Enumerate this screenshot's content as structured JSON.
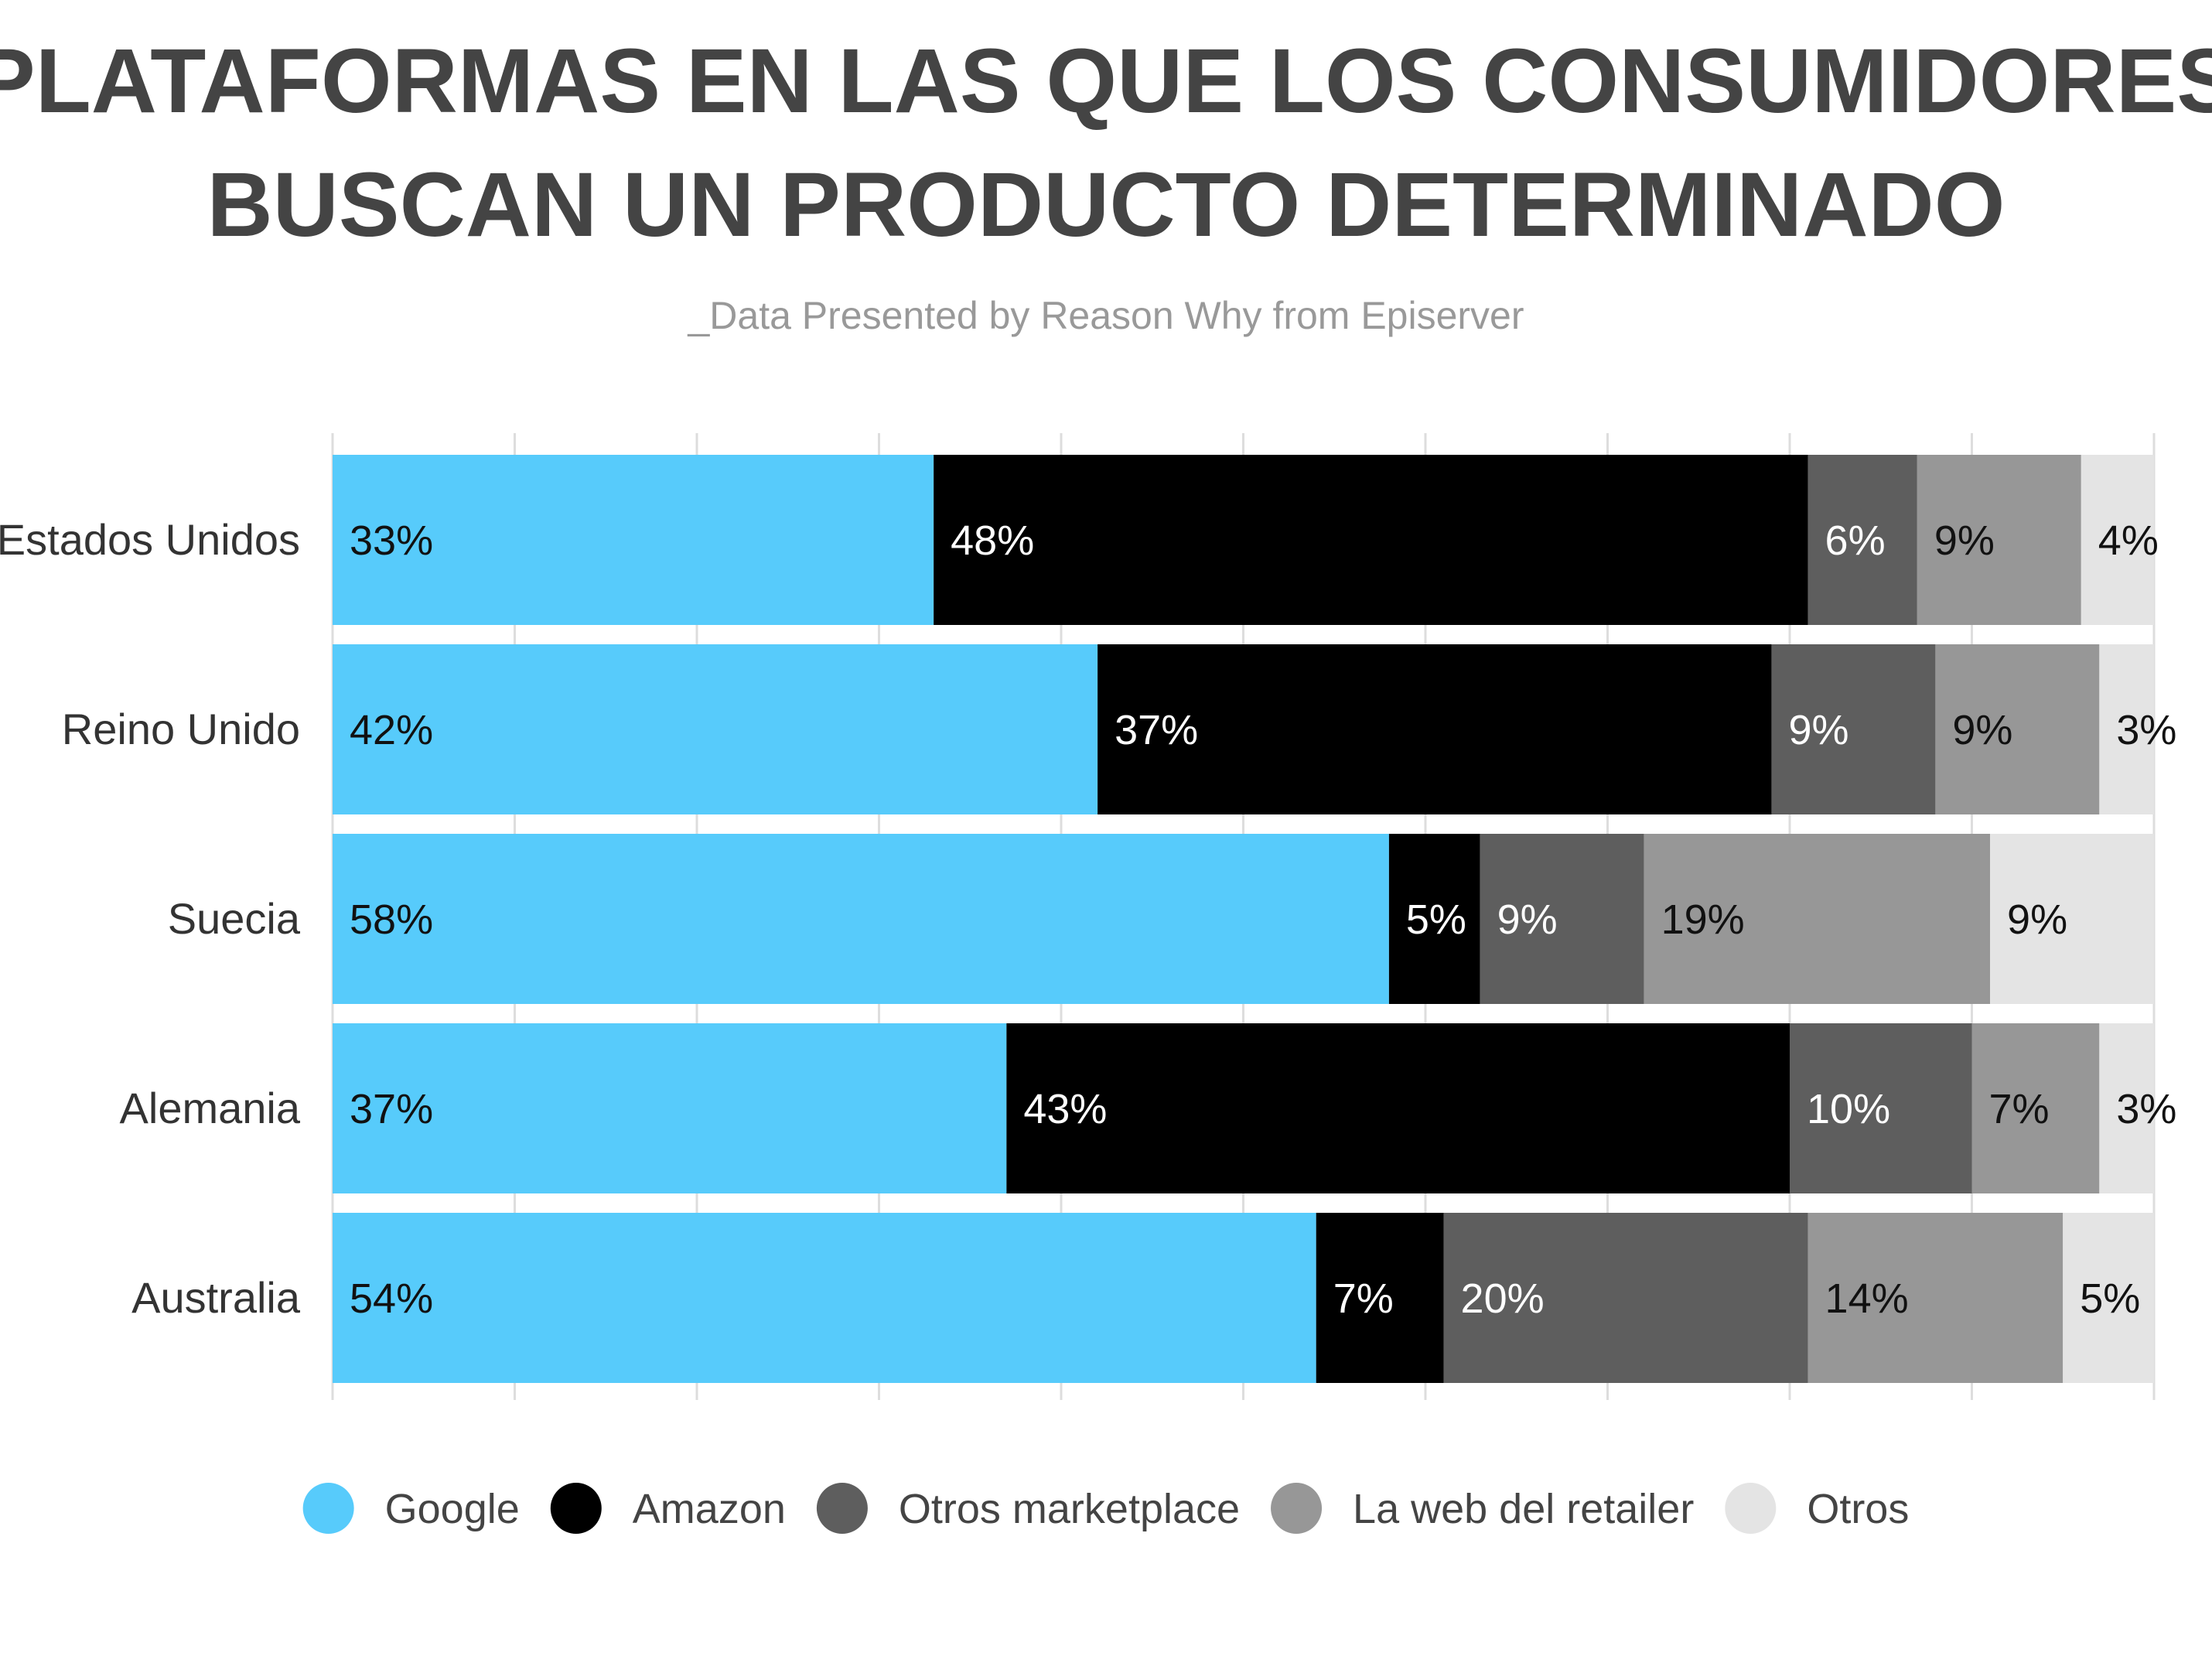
{
  "chart_data": {
    "type": "bar",
    "orientation": "horizontal",
    "stacked": true,
    "title_lines": [
      "PLATAFORMAS EN LAS QUE LOS CONSUMIDORES",
      "BUSCAN UN PRODUCTO DETERMINADO"
    ],
    "subtitle": "_Data Presented by Reason Why from Episerver",
    "categories": [
      "Estados Unidos",
      "Reino Unido",
      "Suecia",
      "Alemania",
      "Australia"
    ],
    "series": [
      {
        "name": "Google",
        "color": "#57CBFB",
        "label_color": "#111111",
        "values": [
          33,
          42,
          58,
          37,
          54
        ]
      },
      {
        "name": "Amazon",
        "color": "#000000",
        "label_color": "#ffffff",
        "values": [
          48,
          37,
          5,
          43,
          7
        ]
      },
      {
        "name": "Otros marketplace",
        "color": "#5E5E5E",
        "label_color": "#ffffff",
        "values": [
          6,
          9,
          9,
          10,
          20
        ]
      },
      {
        "name": "La web del retailer",
        "color": "#979797",
        "label_color": "#111111",
        "values": [
          9,
          9,
          19,
          7,
          14
        ]
      },
      {
        "name": "Otros",
        "color": "#E4E4E4",
        "label_color": "#111111",
        "values": [
          4,
          3,
          9,
          3,
          5
        ]
      }
    ],
    "value_suffix": "%",
    "xlim": [
      0,
      100
    ],
    "grid": true,
    "legend_position": "bottom",
    "colors": {
      "title": "#444444",
      "subtitle": "#999999",
      "category_label": "#333333",
      "legend_text": "#444444",
      "grid": "#dddddd"
    }
  }
}
